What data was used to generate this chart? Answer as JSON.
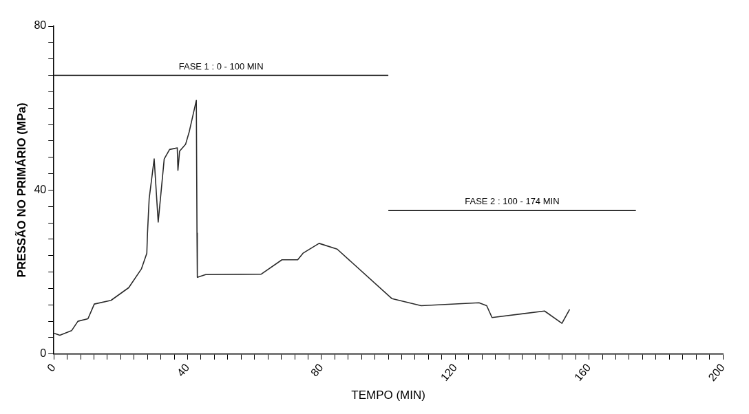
{
  "chart_data": {
    "type": "line",
    "xlabel": "TEMPO (MIN)",
    "ylabel": "PRESSÃO NO PRIMÁRIO (MPa)",
    "xlim": [
      0,
      200
    ],
    "ylim": [
      0,
      80
    ],
    "xticks": [
      0,
      {
        "value": 4,
        "label": null
      },
      {
        "value": 8,
        "label": null
      },
      {
        "value": 12,
        "label": null
      },
      {
        "value": 16,
        "label": null
      },
      {
        "value": 20,
        "label": null
      },
      {
        "value": 24,
        "label": null
      },
      {
        "value": 28,
        "label": null
      },
      {
        "value": 32,
        "label": null
      },
      {
        "value": 36,
        "label": null
      },
      40,
      {
        "value": 44,
        "label": null
      },
      {
        "value": 48,
        "label": null
      },
      {
        "value": 52,
        "label": null
      },
      {
        "value": 56,
        "label": null
      },
      {
        "value": 60,
        "label": null
      },
      {
        "value": 64,
        "label": null
      },
      {
        "value": 68,
        "label": null
      },
      {
        "value": 72,
        "label": null
      },
      {
        "value": 76,
        "label": null
      },
      80,
      {
        "value": 84,
        "label": null
      },
      {
        "value": 88,
        "label": null
      },
      {
        "value": 92,
        "label": null
      },
      {
        "value": 96,
        "label": null
      },
      {
        "value": 100,
        "label": null
      },
      {
        "value": 104,
        "label": null
      },
      {
        "value": 108,
        "label": null
      },
      {
        "value": 112,
        "label": null
      },
      {
        "value": 116,
        "label": null
      },
      120,
      {
        "value": 124,
        "label": null
      },
      {
        "value": 128,
        "label": null
      },
      {
        "value": 132,
        "label": null
      },
      {
        "value": 136,
        "label": null
      },
      {
        "value": 140,
        "label": null
      },
      {
        "value": 144,
        "label": null
      },
      {
        "value": 148,
        "label": null
      },
      {
        "value": 152,
        "label": null
      },
      {
        "value": 156,
        "label": null
      },
      160,
      {
        "value": 164,
        "label": null
      },
      {
        "value": 168,
        "label": null
      },
      {
        "value": 172,
        "label": null
      },
      {
        "value": 176,
        "label": null
      },
      {
        "value": 180,
        "label": null
      },
      {
        "value": 184,
        "label": null
      },
      {
        "value": 188,
        "label": null
      },
      {
        "value": 192,
        "label": null
      },
      {
        "value": 196,
        "label": null
      },
      200
    ],
    "yticks": [
      0,
      {
        "value": 4,
        "label": null
      },
      {
        "value": 8,
        "label": null
      },
      {
        "value": 12,
        "label": null
      },
      {
        "value": 16,
        "label": null
      },
      {
        "value": 20,
        "label": null
      },
      {
        "value": 24,
        "label": null
      },
      {
        "value": 28,
        "label": null
      },
      {
        "value": 32,
        "label": null
      },
      {
        "value": 36,
        "label": null
      },
      40,
      {
        "value": 44,
        "label": null
      },
      {
        "value": 48,
        "label": null
      },
      {
        "value": 52,
        "label": null
      },
      {
        "value": 56,
        "label": null
      },
      {
        "value": 60,
        "label": null
      },
      {
        "value": 64,
        "label": null
      },
      {
        "value": 68,
        "label": null
      },
      {
        "value": 72,
        "label": null
      },
      {
        "value": 76,
        "label": null
      },
      80
    ],
    "grid": false,
    "legend": false,
    "marker": "none",
    "line_style": "solid",
    "series": [
      {
        "color": "#2a2a2a",
        "x": [
          0,
          1.8,
          5.3,
          7.2,
          10.2,
          12.1,
          17.1,
          22.4,
          26.2,
          27.8,
          28,
          28.5,
          30,
          31.2,
          33,
          34.6,
          36.9,
          37.1,
          37.6,
          39.4,
          40.5,
          42.6,
          42.8,
          42.9,
          45.4,
          62,
          68.2,
          72.9,
          74.5,
          79.3,
          84.7,
          101.1,
          109.8,
          127.1,
          129.4,
          131,
          146.7,
          151.9,
          154.2
        ],
        "values": [
          5.1,
          4.6,
          5.7,
          8,
          8.6,
          12.2,
          13.1,
          16.2,
          20.8,
          24.6,
          29.5,
          37.9,
          47.6,
          32.2,
          47.6,
          49.9,
          50.3,
          44.8,
          49.5,
          51.2,
          54.3,
          61.9,
          29.5,
          18.7,
          19.4,
          19.5,
          23,
          23,
          24.6,
          27,
          25.6,
          13.5,
          11.8,
          12.5,
          11.8,
          8.9,
          10.5,
          7.5,
          10.9
        ]
      },
      {
        "name": "FASE 1 : 0 - 100 MIN",
        "color": "#000000",
        "x": [
          0,
          100
        ],
        "values": [
          68,
          68
        ]
      },
      {
        "name": "FASE 2 : 100 - 174 MIN",
        "color": "#000000",
        "x": [
          100,
          174
        ],
        "values": [
          35,
          35
        ]
      }
    ]
  }
}
